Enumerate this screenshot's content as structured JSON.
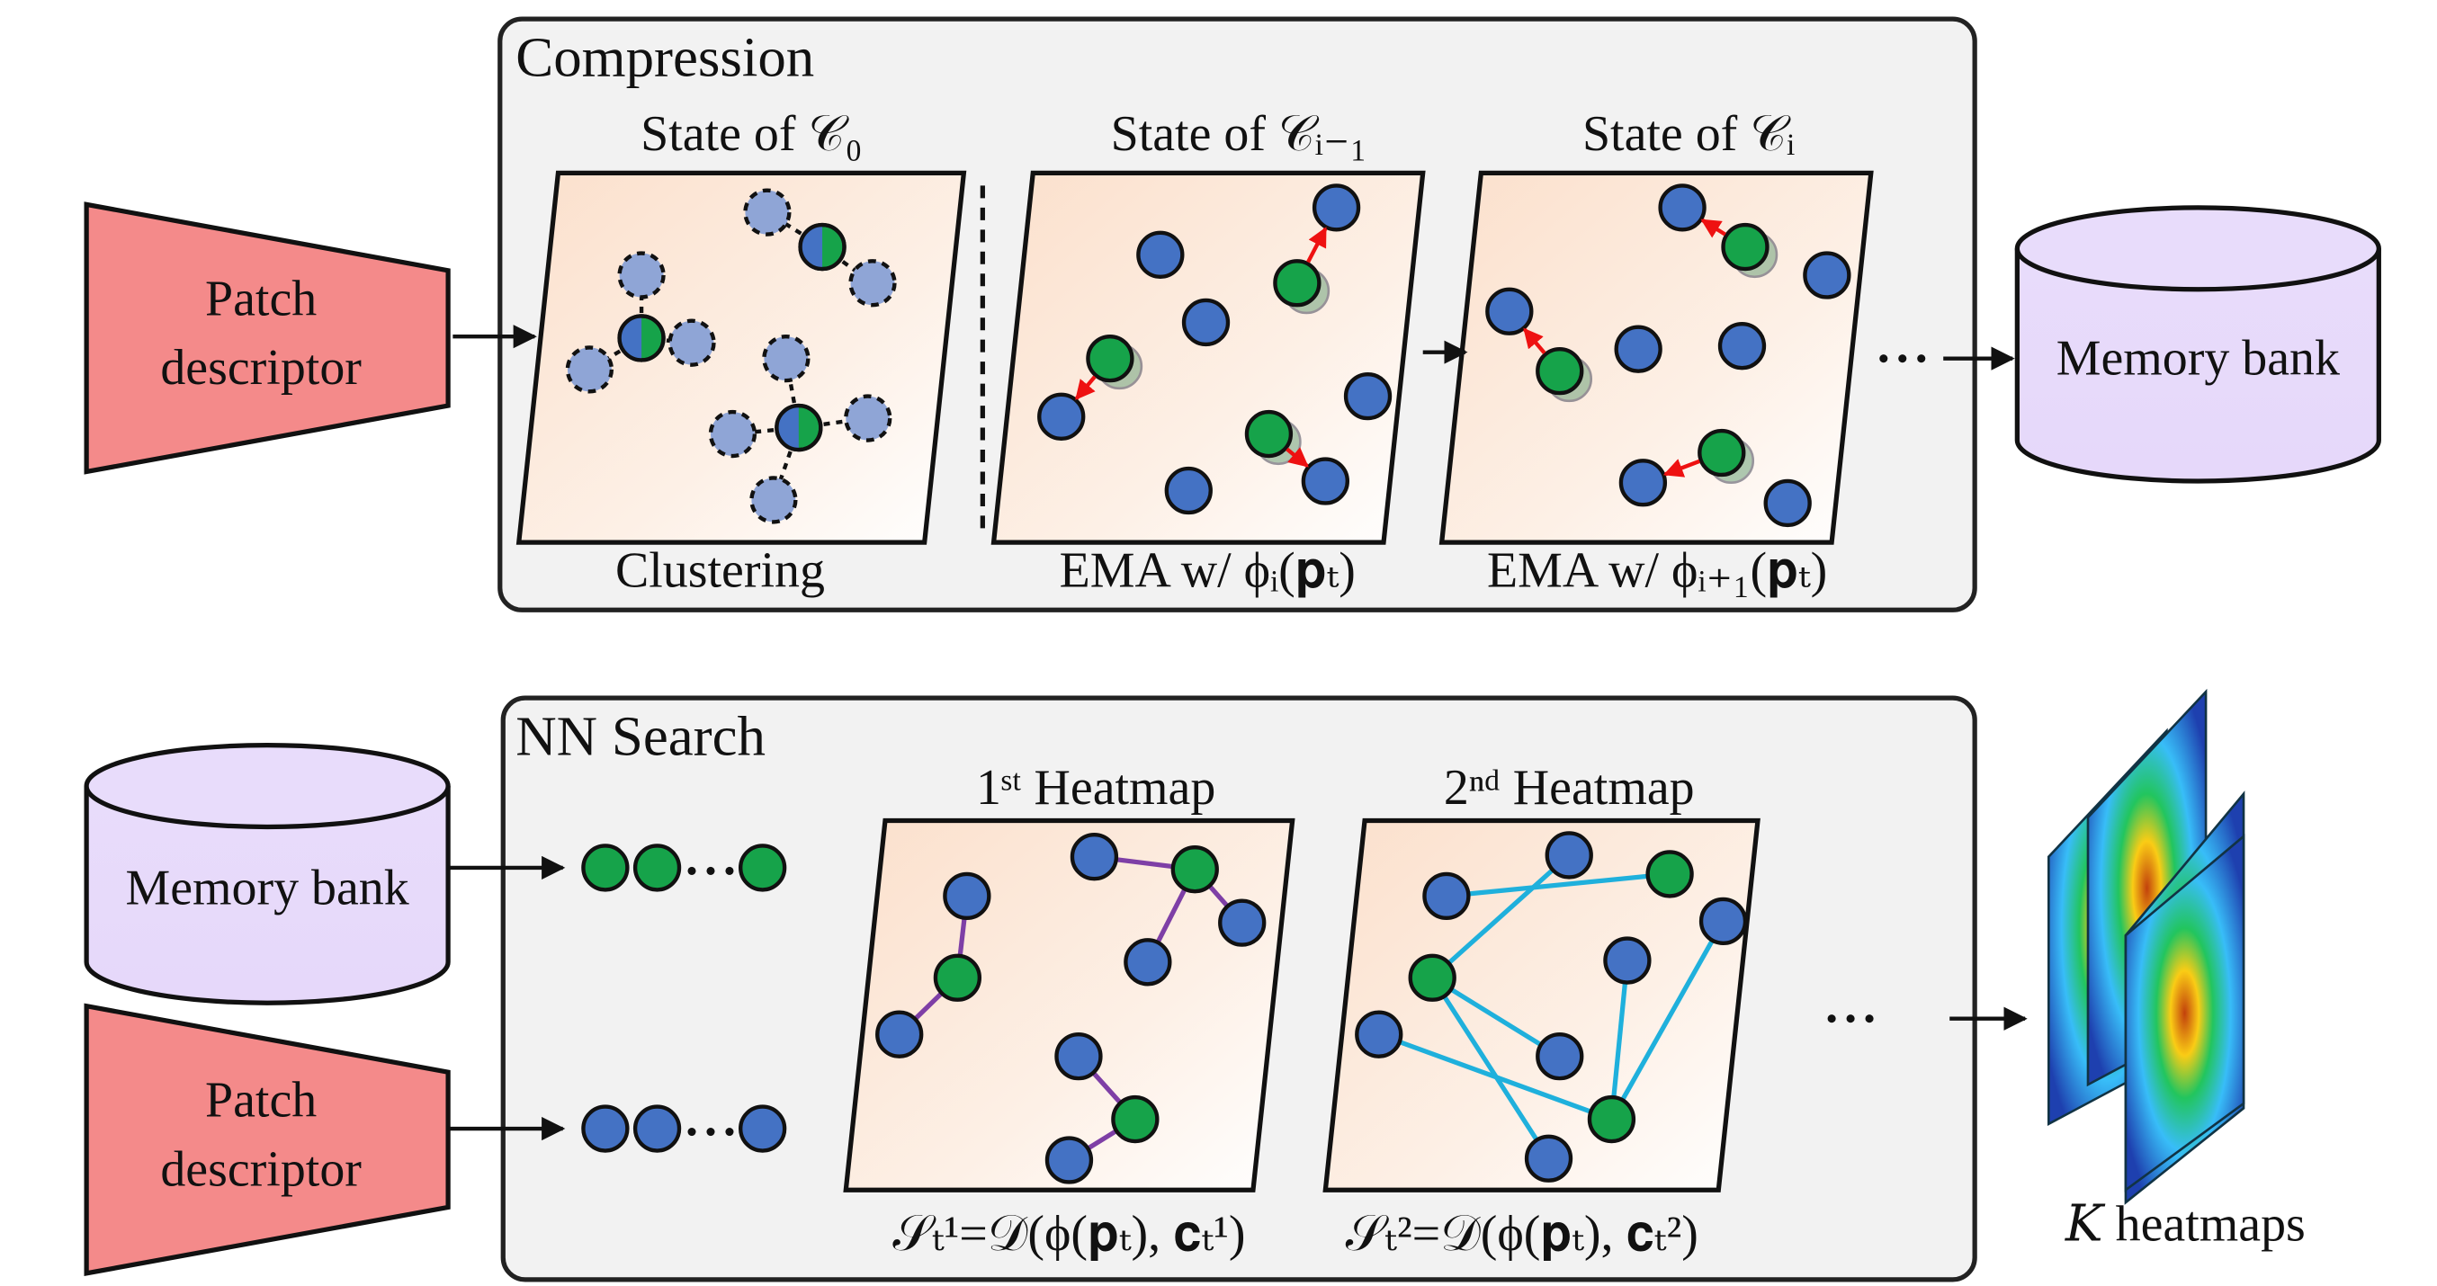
{
  "compression": {
    "title": "Compression",
    "panels": [
      {
        "label": "State of 𝒞₀",
        "caption": "Clustering"
      },
      {
        "label": "State of 𝒞ᵢ₋₁",
        "caption": "EMA w/ ϕᵢ(𝐩ₜ)"
      },
      {
        "label": "State of 𝒞ᵢ",
        "caption": "EMA w/ ϕᵢ₊₁(𝐩ₜ)"
      }
    ]
  },
  "patch_descriptor": {
    "lines": [
      "Patch",
      "descriptor"
    ]
  },
  "memory_bank": {
    "label": "Memory bank"
  },
  "nn_search": {
    "title": "NN Search",
    "panels": [
      {
        "label": "1ˢᵗ Heatmap",
        "formula": "𝒮ₜ¹=𝒟(ϕ(𝐩ₜ), 𝐜ₜ¹)"
      },
      {
        "label": "2ⁿᵈ Heatmap",
        "formula": "𝒮ₜ²=𝒟(ϕ(𝐩ₜ), 𝐜ₜ²)"
      }
    ],
    "output": "𝐾 heatmaps"
  }
}
